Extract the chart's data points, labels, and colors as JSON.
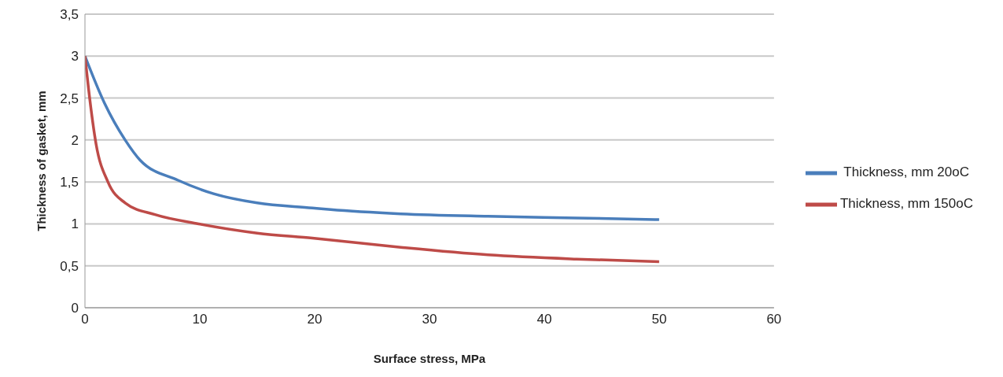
{
  "chart_data": {
    "type": "line",
    "xlabel": "Surface stress, MPa",
    "ylabel": "Thickness of gasket, mm",
    "xlim": [
      0,
      60
    ],
    "xticks": [
      0,
      10,
      20,
      30,
      40,
      50,
      60
    ],
    "ylim": [
      0,
      3.5
    ],
    "yticks": [
      0,
      {
        "value": 0.5,
        "label": "0,5"
      },
      1,
      {
        "value": 1.5,
        "label": "1,5"
      },
      2,
      {
        "value": 2.5,
        "label": "2,5"
      },
      3,
      {
        "value": 3.5,
        "label": "3,5"
      }
    ],
    "grid": "y",
    "legend": "right",
    "marker": "none",
    "line_style": "solid",
    "series": [
      {
        "name": " Thickness, mm 20oC",
        "color": "#4a7ebb",
        "x": [
          0,
          1.7,
          3.5,
          4.8,
          8.1,
          11.2,
          15,
          19.8,
          21.4,
          27.5,
          35.1,
          42.8,
          50
        ],
        "values": [
          3,
          2.44,
          2.0,
          1.76,
          1.52,
          1.36,
          1.25,
          1.19,
          1.17,
          1.12,
          1.09,
          1.07,
          1.05
        ]
      },
      {
        "name": "Thickness, mm 150oC",
        "color": "#be4b48",
        "x": [
          0,
          0.33,
          0.97,
          2,
          3.5,
          6.1,
          9.9,
          15,
          19.8,
          27.5,
          35.1,
          42.8,
          50
        ],
        "values": [
          3,
          2.59,
          1.95,
          1.5,
          1.25,
          1.11,
          1.0,
          0.89,
          0.83,
          0.72,
          0.63,
          0.58,
          0.55
        ]
      }
    ]
  }
}
